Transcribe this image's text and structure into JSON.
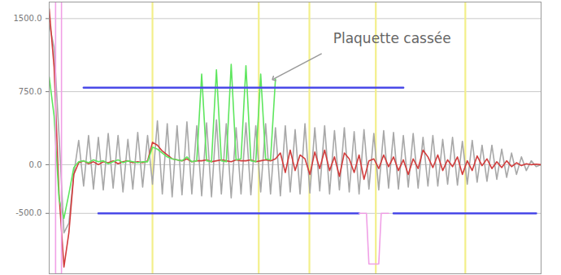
{
  "chart_data": {
    "type": "line",
    "grid": true,
    "tick_labels": "y",
    "xlim": [
      0,
      100
    ],
    "ylim": [
      -1120,
      1670
    ],
    "yticks": [
      {
        "value": 1500,
        "label": "1500.0"
      },
      {
        "value": 750,
        "label": "750.0"
      },
      {
        "value": 0,
        "label": "0.0"
      },
      {
        "value": -500,
        "label": "-500.0"
      }
    ],
    "x": [
      0,
      1,
      2,
      3,
      4,
      5,
      6,
      7,
      8,
      9,
      10,
      11,
      12,
      13,
      14,
      15,
      16,
      17,
      18,
      19,
      20,
      21,
      22,
      23,
      24,
      25,
      26,
      27,
      28,
      29,
      30,
      31,
      32,
      33,
      34,
      35,
      36,
      37,
      38,
      39,
      40,
      41,
      42,
      43,
      44,
      45,
      46,
      47,
      48,
      49,
      50,
      51,
      52,
      53,
      54,
      55,
      56,
      57,
      58,
      59,
      60,
      61,
      62,
      63,
      64,
      65,
      66,
      67,
      68,
      69,
      70,
      71,
      72,
      73,
      74,
      75,
      76,
      77,
      78,
      79,
      80,
      81,
      82,
      83,
      84,
      85,
      86,
      87,
      88,
      89,
      90,
      91,
      92,
      93,
      94,
      95,
      96,
      97,
      98,
      99,
      100
    ],
    "series": [
      {
        "type": "rule",
        "color": "#f3ef8a",
        "x": [
          21.0,
          42.6,
          52.9,
          66.4,
          84.6
        ]
      },
      {
        "color": "#a8a8a8",
        "values": [
          1450,
          1200,
          300,
          -700,
          -600,
          -100,
          250,
          -220,
          300,
          -250,
          280,
          -260,
          320,
          -240,
          300,
          -280,
          260,
          -250,
          330,
          -230,
          300,
          -200,
          450,
          -300,
          420,
          -330,
          400,
          -310,
          440,
          -300,
          400,
          -320,
          430,
          -330,
          460,
          -300,
          420,
          -340,
          380,
          -300,
          430,
          -310,
          400,
          -280,
          420,
          -300,
          380,
          -320,
          400,
          -280,
          360,
          -300,
          420,
          -290,
          380,
          -270,
          400,
          -300,
          350,
          -260,
          380,
          -280,
          340,
          -300,
          360,
          -250,
          320,
          -260,
          350,
          -240,
          330,
          -250,
          300,
          -230,
          320,
          -240,
          280,
          -220,
          300,
          -220,
          260,
          -200,
          280,
          -210,
          240,
          -200,
          250,
          -180,
          200,
          -170,
          200,
          -150,
          160,
          -130,
          120,
          -100,
          80,
          -60,
          40,
          -20,
          0
        ]
      },
      {
        "color": "#d23c3c",
        "values": [
          1600,
          1000,
          -300,
          -1050,
          -700,
          -100,
          20,
          40,
          10,
          30,
          0,
          30,
          20,
          40,
          10,
          30,
          40,
          20,
          30,
          20,
          40,
          230,
          200,
          140,
          100,
          60,
          50,
          40,
          60,
          30,
          40,
          40,
          50,
          30,
          40,
          50,
          40,
          30,
          50,
          40,
          40,
          50,
          30,
          40,
          50,
          40,
          60,
          120,
          -80,
          150,
          -60,
          100,
          60,
          -100,
          130,
          -40,
          150,
          -60,
          80,
          -120,
          120,
          60,
          -80,
          100,
          -150,
          40,
          60,
          -40,
          100,
          -20,
          80,
          -60,
          50,
          -100,
          60,
          -40,
          150,
          80,
          -30,
          100,
          -60,
          50,
          -20,
          80,
          -100,
          40,
          -60,
          90,
          -10,
          60,
          -40,
          30,
          -30,
          40,
          -20,
          20,
          -10,
          10,
          0,
          5,
          0
        ]
      },
      {
        "color": "#5ee65e",
        "values": [
          900,
          500,
          -350,
          -550,
          -300,
          -30,
          30,
          40,
          20,
          50,
          30,
          40,
          10,
          30,
          50,
          20,
          40,
          30,
          20,
          30,
          30,
          180,
          160,
          120,
          80,
          60,
          50,
          40,
          80,
          30,
          40,
          930,
          40,
          30,
          975,
          40,
          30,
          1030,
          50,
          60,
          1015,
          40,
          30,
          930,
          60,
          50,
          880,
          null,
          null,
          null,
          null,
          null,
          null,
          null,
          null,
          null,
          null,
          null,
          null,
          null,
          null,
          null,
          null,
          null,
          null,
          null,
          null,
          null,
          null,
          null,
          null,
          null,
          null,
          null,
          null,
          null,
          null,
          null,
          null,
          null,
          null,
          null,
          null,
          null,
          null,
          null,
          null,
          null,
          null,
          null,
          null,
          null,
          null,
          null,
          null,
          null,
          null,
          null,
          null,
          null,
          null
        ]
      },
      {
        "color": "#4a4ae8",
        "x": [
          7,
          72
        ],
        "values": [
          790,
          790
        ]
      },
      {
        "color": "#4a4ae8",
        "x": [
          10,
          63,
          66,
          70,
          99
        ],
        "values": [
          -500,
          -500,
          null,
          -500,
          -500
        ]
      },
      {
        "color": "#f0a0e6",
        "x": [
          1.3,
          1.3,
          2.5,
          2.5,
          30,
          63,
          64.5,
          65,
          67,
          67.5,
          69
        ],
        "values": [
          1670,
          -1120,
          -1120,
          1670,
          null,
          -500,
          -500,
          -1020,
          -1020,
          -500,
          -500
        ]
      }
    ],
    "annotations": [
      {
        "text": "Plaquette cassée",
        "x": 55.4,
        "y": 1140,
        "target_x": 45.6,
        "target_y": 880
      }
    ]
  }
}
